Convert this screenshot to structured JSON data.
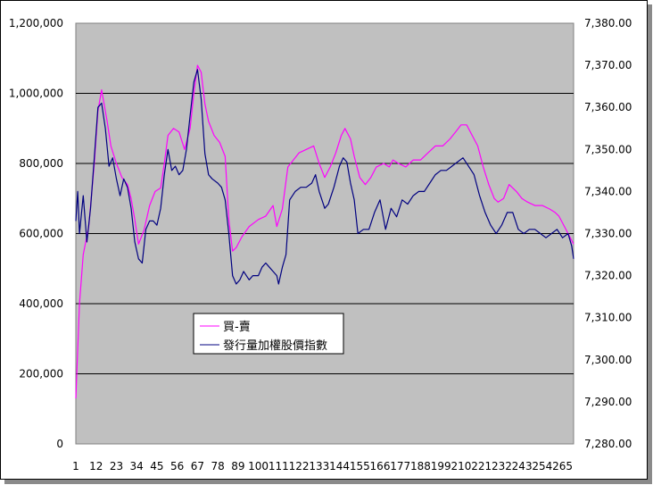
{
  "chart_data": {
    "type": "line",
    "grid": true,
    "legend_position": "center",
    "plot_background": "#c0c0c0",
    "left_axis": {
      "range": [
        0,
        1200000
      ],
      "ticks": [
        0,
        200000,
        400000,
        600000,
        800000,
        1000000,
        1200000
      ],
      "tick_labels": [
        "0",
        "200,000",
        "400,000",
        "600,000",
        "800,000",
        "1,000,000",
        "1,200,000"
      ]
    },
    "right_axis": {
      "range": [
        7280,
        7380
      ],
      "ticks": [
        7280,
        7290,
        7300,
        7310,
        7320,
        7330,
        7340,
        7350,
        7360,
        7370,
        7380
      ],
      "tick_labels": [
        "7,280.00",
        "7,290.00",
        "7,300.00",
        "7,310.00",
        "7,320.00",
        "7,330.00",
        "7,340.00",
        "7,350.00",
        "7,360.00",
        "7,370.00",
        "7,380.00"
      ]
    },
    "x_axis": {
      "range": [
        1,
        271
      ],
      "tick_labels": [
        "1",
        "12",
        "23",
        "34",
        "45",
        "56",
        "67",
        "78",
        "89",
        "100",
        "111",
        "122",
        "133",
        "144",
        "155",
        "166",
        "177",
        "188",
        "199",
        "210",
        "221",
        "232",
        "243",
        "254",
        "265"
      ]
    },
    "series": [
      {
        "name": "買-賣",
        "axis": "left",
        "color": "#ff00ff",
        "x": [
          1,
          3,
          5,
          8,
          11,
          13,
          15,
          18,
          20,
          23,
          26,
          29,
          31,
          33,
          35,
          38,
          41,
          44,
          47,
          49,
          51,
          54,
          57,
          60,
          63,
          65,
          67,
          69,
          71,
          73,
          76,
          79,
          82,
          84,
          86,
          88,
          91,
          95,
          100,
          104,
          108,
          110,
          113,
          116,
          119,
          122,
          126,
          130,
          133,
          136,
          139,
          142,
          145,
          147,
          150,
          152,
          155,
          158,
          161,
          164,
          168,
          171,
          173,
          176,
          180,
          184,
          188,
          192,
          196,
          200,
          204,
          207,
          210,
          213,
          216,
          219,
          222,
          225,
          228,
          230,
          233,
          236,
          240,
          243,
          246,
          250,
          254,
          258,
          261,
          263,
          266,
          268,
          271
        ],
        "y": [
          130000,
          400000,
          540000,
          620000,
          800000,
          950000,
          1010000,
          920000,
          850000,
          800000,
          760000,
          740000,
          700000,
          640000,
          570000,
          610000,
          680000,
          720000,
          730000,
          800000,
          880000,
          900000,
          890000,
          840000,
          900000,
          1000000,
          1080000,
          1060000,
          970000,
          920000,
          880000,
          860000,
          820000,
          640000,
          550000,
          560000,
          590000,
          620000,
          640000,
          650000,
          680000,
          620000,
          670000,
          790000,
          810000,
          830000,
          840000,
          850000,
          800000,
          760000,
          790000,
          830000,
          880000,
          900000,
          870000,
          820000,
          760000,
          740000,
          760000,
          790000,
          800000,
          790000,
          810000,
          800000,
          790000,
          810000,
          810000,
          830000,
          850000,
          850000,
          870000,
          890000,
          910000,
          910000,
          880000,
          850000,
          790000,
          740000,
          700000,
          690000,
          700000,
          740000,
          720000,
          700000,
          690000,
          680000,
          680000,
          670000,
          660000,
          650000,
          620000,
          600000,
          570000
        ]
      },
      {
        "name": "發行量加權股價指數",
        "axis": "right",
        "color": "#000080",
        "x": [
          1,
          2,
          3,
          5,
          7,
          9,
          11,
          13,
          15,
          17,
          19,
          21,
          23,
          25,
          27,
          29,
          31,
          33,
          35,
          37,
          39,
          41,
          43,
          45,
          47,
          49,
          51,
          53,
          55,
          57,
          59,
          61,
          63,
          65,
          67,
          69,
          71,
          73,
          75,
          78,
          80,
          82,
          84,
          86,
          88,
          90,
          92,
          95,
          97,
          100,
          102,
          104,
          106,
          108,
          110,
          111,
          113,
          115,
          117,
          120,
          123,
          126,
          129,
          131,
          133,
          136,
          138,
          141,
          144,
          146,
          148,
          150,
          152,
          154,
          157,
          160,
          163,
          166,
          169,
          172,
          175,
          178,
          181,
          184,
          187,
          190,
          193,
          196,
          199,
          202,
          205,
          208,
          211,
          214,
          217,
          220,
          223,
          226,
          229,
          232,
          235,
          238,
          241,
          244,
          247,
          250,
          253,
          256,
          259,
          262,
          265,
          268,
          270,
          271
        ],
        "y": [
          7333,
          7340,
          7330,
          7339,
          7328,
          7336,
          7348,
          7360,
          7361,
          7355,
          7346,
          7348,
          7343,
          7339,
          7343,
          7341,
          7336,
          7328,
          7324,
          7323,
          7331,
          7333,
          7333,
          7332,
          7336,
          7344,
          7350,
          7345,
          7346,
          7344,
          7345,
          7350,
          7358,
          7366,
          7369,
          7362,
          7349,
          7344,
          7343,
          7342,
          7341,
          7338,
          7330,
          7320,
          7318,
          7319,
          7321,
          7319,
          7320,
          7320,
          7322,
          7323,
          7322,
          7321,
          7320,
          7318,
          7322,
          7325,
          7338,
          7340,
          7341,
          7341,
          7342,
          7344,
          7340,
          7336,
          7337,
          7341,
          7346,
          7348,
          7347,
          7342,
          7338,
          7330,
          7331,
          7331,
          7335,
          7338,
          7331,
          7336,
          7334,
          7338,
          7337,
          7339,
          7340,
          7340,
          7342,
          7344,
          7345,
          7345,
          7346,
          7347,
          7348,
          7346,
          7344,
          7339,
          7335,
          7332,
          7330,
          7332,
          7335,
          7335,
          7331,
          7330,
          7331,
          7331,
          7330,
          7329,
          7330,
          7331,
          7329,
          7330,
          7327,
          7324
        ]
      }
    ]
  }
}
